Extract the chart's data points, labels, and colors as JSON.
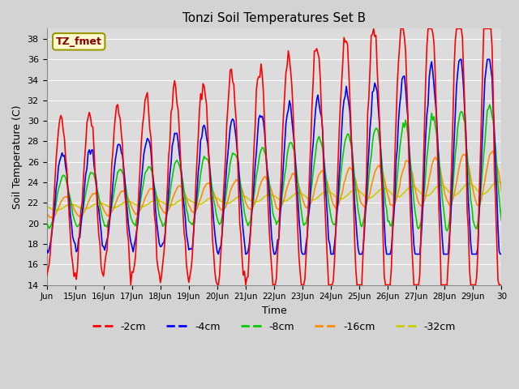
{
  "title": "Tonzi Soil Temperatures Set B",
  "xlabel": "Time",
  "ylabel": "Soil Temperature (C)",
  "ylim": [
    14,
    39
  ],
  "yticks": [
    14,
    16,
    18,
    20,
    22,
    24,
    26,
    28,
    30,
    32,
    34,
    36,
    38
  ],
  "xtick_labels": [
    "Jun",
    "15Jun",
    "16Jun",
    "17Jun",
    "18Jun",
    "19Jun",
    "20Jun",
    "21Jun",
    "22Jun",
    "23Jun",
    "24Jun",
    "25Jun",
    "26Jun",
    "27Jun",
    "28Jun",
    "29Jun",
    "30"
  ],
  "annotation_text": "TZ_fmet",
  "annotation_color": "#8B0000",
  "annotation_bg": "#FFFACD",
  "colors": {
    "-2cm": "#FF0000",
    "-4cm": "#0000FF",
    "-8cm": "#00CC00",
    "-16cm": "#FF8C00",
    "-32cm": "#CCCC00"
  },
  "bg_color": "#DCDCDC",
  "grid_color": "#FFFFFF",
  "fig_bg": "#D3D3D3",
  "figsize": [
    6.4,
    4.8
  ],
  "dpi": 100
}
